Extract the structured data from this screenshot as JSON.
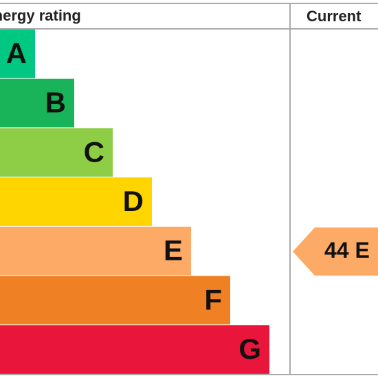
{
  "header": {
    "title": "Energy rating",
    "current": "Current"
  },
  "bands": [
    {
      "letter": "A"
    },
    {
      "letter": "B"
    },
    {
      "letter": "C"
    },
    {
      "letter": "D"
    },
    {
      "letter": "E"
    },
    {
      "letter": "F"
    },
    {
      "letter": "G"
    }
  ],
  "current_rating": {
    "value": 44,
    "band": "E"
  }
}
